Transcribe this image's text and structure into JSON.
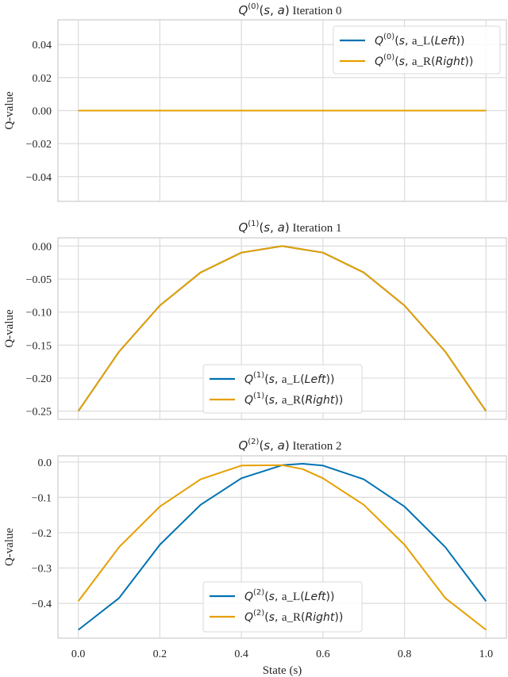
{
  "figure": {
    "xlabel": "State (s)",
    "colors": {
      "left": "#0072b2",
      "right": "#e69f00",
      "grid": "#dcdcdc",
      "frame": "#d6d6d6",
      "text": "#262626"
    }
  },
  "chart_data": [
    {
      "type": "line",
      "title": "Q^(0)(s, a) Iteration 0",
      "title_math": "Q",
      "title_sup": "(0)",
      "title_args": "(s, a)",
      "title_text": "Iteration 0",
      "xlabel": "",
      "ylabel": "Q-value",
      "xlim": [
        -0.05,
        1.05
      ],
      "ylim": [
        -0.055,
        0.055
      ],
      "xticks": [
        0.0,
        0.2,
        0.4,
        0.6,
        0.8,
        1.0
      ],
      "show_xticklabels": false,
      "yticks": [
        0.04,
        0.02,
        0.0,
        -0.02,
        -0.04
      ],
      "yticklabels": [
        "0.04",
        "0.02",
        "0.00",
        "−0.02",
        "−0.04"
      ],
      "grid": true,
      "legend_position": "upper right",
      "x": [
        0.0,
        0.1,
        0.2,
        0.3,
        0.4,
        0.5,
        0.6,
        0.7,
        0.8,
        0.9,
        1.0
      ],
      "series": [
        {
          "name": "Q^(0)(s, a_L(Left))",
          "sup": "(0)",
          "action": "L",
          "dir": "Left",
          "values": [
            0,
            0,
            0,
            0,
            0,
            0,
            0,
            0,
            0,
            0,
            0
          ]
        },
        {
          "name": "Q^(0)(s, a_R(Right))",
          "sup": "(0)",
          "action": "R",
          "dir": "Right",
          "values": [
            0,
            0,
            0,
            0,
            0,
            0,
            0,
            0,
            0,
            0,
            0
          ]
        }
      ]
    },
    {
      "type": "line",
      "title": "Q^(1)(s, a) Iteration 1",
      "title_math": "Q",
      "title_sup": "(1)",
      "title_args": "(s, a)",
      "title_text": "Iteration 1",
      "xlabel": "",
      "ylabel": "Q-value",
      "xlim": [
        -0.05,
        1.05
      ],
      "ylim": [
        -0.2625,
        0.0125
      ],
      "xticks": [
        0.0,
        0.2,
        0.4,
        0.6,
        0.8,
        1.0
      ],
      "show_xticklabels": false,
      "yticks": [
        0.0,
        -0.05,
        -0.1,
        -0.15,
        -0.2,
        -0.25
      ],
      "yticklabels": [
        "0.00",
        "−0.05",
        "−0.10",
        "−0.15",
        "−0.20",
        "−0.25"
      ],
      "grid": true,
      "legend_position": "lower center",
      "x": [
        0.0,
        0.1,
        0.2,
        0.3,
        0.4,
        0.5,
        0.6,
        0.7,
        0.8,
        0.9,
        1.0
      ],
      "series": [
        {
          "name": "Q^(1)(s, a_L(Left))",
          "sup": "(1)",
          "action": "L",
          "dir": "Left",
          "values": [
            -0.25,
            -0.16,
            -0.09,
            -0.04,
            -0.01,
            0.0,
            -0.01,
            -0.04,
            -0.09,
            -0.16,
            -0.25
          ]
        },
        {
          "name": "Q^(1)(s, a_R(Right))",
          "sup": "(1)",
          "action": "R",
          "dir": "Right",
          "values": [
            -0.25,
            -0.16,
            -0.09,
            -0.04,
            -0.01,
            0.0,
            -0.01,
            -0.04,
            -0.09,
            -0.16,
            -0.25
          ]
        }
      ]
    },
    {
      "type": "line",
      "title": "Q^(2)(s, a) Iteration 2",
      "title_math": "Q",
      "title_sup": "(2)",
      "title_args": "(s, a)",
      "title_text": "Iteration 2",
      "xlabel": "State (s)",
      "ylabel": "Q-value",
      "xlim": [
        -0.05,
        1.05
      ],
      "ylim": [
        -0.4985,
        0.0175
      ],
      "xticks": [
        0.0,
        0.2,
        0.4,
        0.6,
        0.8,
        1.0
      ],
      "show_xticklabels": true,
      "xticklabels": [
        "0.0",
        "0.2",
        "0.4",
        "0.6",
        "0.8",
        "1.0"
      ],
      "yticks": [
        0.0,
        -0.1,
        -0.2,
        -0.3,
        -0.4
      ],
      "yticklabels": [
        "0.0",
        "−0.1",
        "−0.2",
        "−0.3",
        "−0.4"
      ],
      "grid": true,
      "legend_position": "lower center",
      "x": [
        0.0,
        0.1,
        0.2,
        0.3,
        0.4,
        0.5,
        0.55,
        0.6,
        0.7,
        0.8,
        0.9,
        1.0
      ],
      "series": [
        {
          "name": "Q^(2)(s, a_L(Left))",
          "sup": "(2)",
          "action": "L",
          "dir": "Left",
          "values": [
            -0.475,
            -0.385,
            -0.234,
            -0.121,
            -0.046,
            -0.009,
            -0.005,
            -0.01,
            -0.049,
            -0.126,
            -0.241,
            -0.394
          ]
        },
        {
          "name": "Q^(2)(s, a_R(Right))",
          "sup": "(2)",
          "action": "R",
          "dir": "Right",
          "values": [
            -0.394,
            -0.241,
            -0.126,
            -0.049,
            -0.01,
            -0.009,
            -0.02,
            -0.046,
            -0.121,
            -0.234,
            -0.385,
            -0.475
          ]
        }
      ]
    }
  ]
}
